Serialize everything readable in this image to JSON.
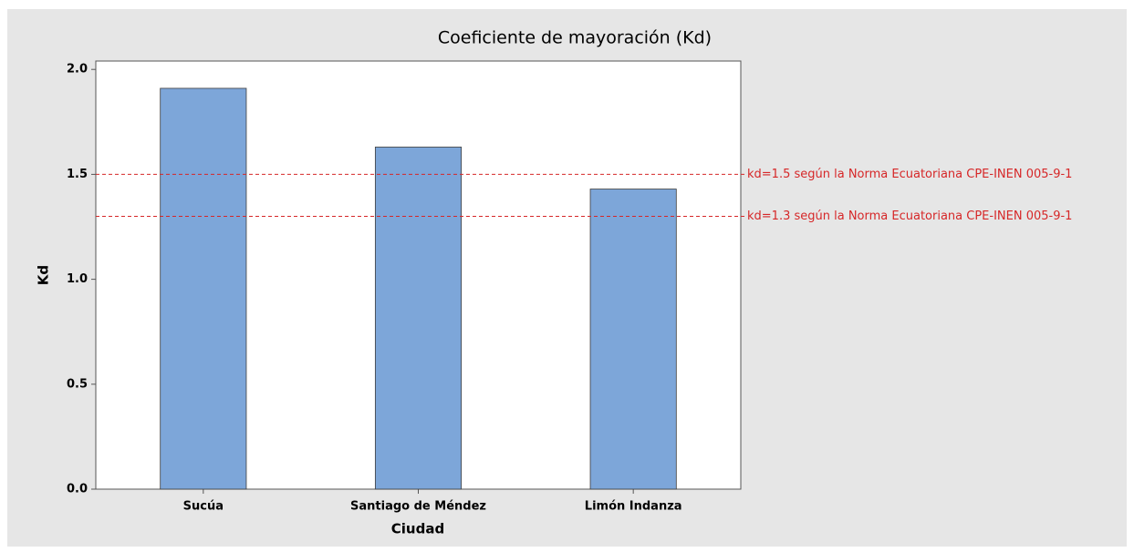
{
  "chart_data": {
    "type": "bar",
    "title": "Coeficiente de mayoración (Kd)",
    "x_label": "Ciudad",
    "y_label": "Kd",
    "categories": [
      "Sucúa",
      "Santiago de Méndez",
      "Limón Indanza"
    ],
    "values": [
      1.91,
      1.63,
      1.43
    ],
    "color": "#7da6d9",
    "ylim": [
      0,
      2.04
    ],
    "yticks": [
      {
        "value": 0,
        "label": "0.0"
      },
      {
        "value": 0.5,
        "label": "0.5"
      },
      {
        "value": 1,
        "label": "1.0"
      },
      {
        "value": 1.5,
        "label": "1.5"
      },
      {
        "value": 2,
        "label": "2.0"
      }
    ],
    "reference_lines": [
      {
        "value": 1.5,
        "label": "kd=1.5 según la Norma Ecuatoriana CPE-INEN 005-9-1"
      },
      {
        "value": 1.3,
        "label": "kd=1.3 según la Norma Ecuatoriana CPE-INEN 005-9-1"
      }
    ],
    "reference_color": "#d62728",
    "grid": false
  }
}
